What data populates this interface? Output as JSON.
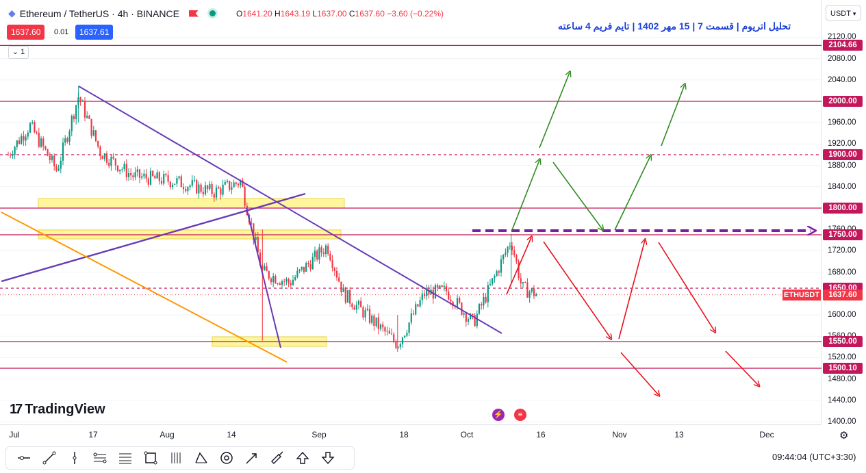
{
  "header": {
    "symbol_label": "Ethereum / TetherUS · 4h · BINANCE",
    "ohlc": {
      "o_label": "O",
      "o": "1641.20",
      "h_label": "H",
      "h": "1643.19",
      "l_label": "L",
      "l": "1637.00",
      "c_label": "C",
      "c": "1637.60",
      "change": "−3.60 (−0.22%)"
    },
    "sell_price": "1637.60",
    "spread": "0.01",
    "buy_price": "1637.61",
    "indicator_count": "1"
  },
  "title": "تحلیل اتریوم | قسمت 7 | 15 مهر 1402 | تایم فریم 4 ساعته",
  "currency_button": "USDT",
  "colors": {
    "up": "#089981",
    "down": "#f23645",
    "level": "#c2185b",
    "trend": "#673ab7",
    "orange": "#ff9800",
    "zone": "#fff59d",
    "dashed_target": "#7b1fa2",
    "bull_arrow": "#2e8b1f",
    "bear_arrow": "#e8101a",
    "title": "#1a3fd8"
  },
  "price_ticks": [
    "2120.00",
    "2080.00",
    "2040.00",
    "1960.00",
    "1920.00",
    "1880.00",
    "1840.00",
    "1760.00",
    "1720.00",
    "1680.00",
    "1600.00",
    "1560.00",
    "1520.00",
    "1480.00",
    "1440.00",
    "1400.00"
  ],
  "levels": [
    {
      "price": 2104.66,
      "label": "2104.66",
      "style": "solid"
    },
    {
      "price": 2000.0,
      "label": "2000.00",
      "style": "solid"
    },
    {
      "price": 1900.0,
      "label": "1900.00",
      "style": "dashed"
    },
    {
      "price": 1800.0,
      "label": "1800.00",
      "style": "solid"
    },
    {
      "price": 1750.0,
      "label": "1750.00",
      "style": "solid"
    },
    {
      "price": 1650.0,
      "label": "1650.00",
      "style": "dashed"
    },
    {
      "price": 1550.0,
      "label": "1550.00",
      "style": "solid"
    },
    {
      "price": 1500.1,
      "label": "1500.10",
      "style": "solid"
    }
  ],
  "current": {
    "symbol": "ETHUSDT",
    "price": 1637.6,
    "label": "1637.60"
  },
  "time_labels": [
    "Jul",
    "17",
    "Aug",
    "14",
    "Sep",
    "18",
    "Oct",
    "16",
    "Nov",
    "13",
    "Dec"
  ],
  "branding": "TradingView",
  "clock": "09:44:04",
  "timezone": "(UTC+3:30)",
  "toolbar_tools": [
    "horizontal-ray-tool",
    "trend-line-tool",
    "vertical-line-tool",
    "parallel-channel-tool",
    "fib-retracement-tool",
    "rectangle-tool",
    "pitchfork-tool",
    "abcd-pattern-tool",
    "target-tool",
    "arrow-tool",
    "brush-tool",
    "arrow-up-tool",
    "arrow-down-tool"
  ],
  "chart_data": {
    "type": "candlestick",
    "symbol": "ETHUSDT",
    "interval": "4h",
    "ylim": [
      1400,
      2130
    ],
    "x": [
      "Jul",
      "17",
      "Aug",
      "14",
      "Sep",
      "18",
      "Oct",
      "16",
      "Nov",
      "13",
      "Dec"
    ],
    "close_path": [
      {
        "date": "2023-07-01",
        "price": 1900
      },
      {
        "date": "2023-07-05",
        "price": 1955
      },
      {
        "date": "2023-07-10",
        "price": 1870
      },
      {
        "date": "2023-07-14",
        "price": 2010
      },
      {
        "date": "2023-07-18",
        "price": 1905
      },
      {
        "date": "2023-07-24",
        "price": 1860
      },
      {
        "date": "2023-08-01",
        "price": 1850
      },
      {
        "date": "2023-08-08",
        "price": 1830
      },
      {
        "date": "2023-08-13",
        "price": 1850
      },
      {
        "date": "2023-08-17",
        "price": 1680
      },
      {
        "date": "2023-08-22",
        "price": 1660
      },
      {
        "date": "2023-08-29",
        "price": 1730
      },
      {
        "date": "2023-09-01",
        "price": 1640
      },
      {
        "date": "2023-09-11",
        "price": 1545
      },
      {
        "date": "2023-09-16",
        "price": 1640
      },
      {
        "date": "2023-09-20",
        "price": 1645
      },
      {
        "date": "2023-09-25",
        "price": 1585
      },
      {
        "date": "2023-09-28",
        "price": 1650
      },
      {
        "date": "2023-10-02",
        "price": 1740
      },
      {
        "date": "2023-10-04",
        "price": 1650
      },
      {
        "date": "2023-10-07",
        "price": 1637.6
      }
    ],
    "high": 2029,
    "low": 1531,
    "levels": [
      2104.66,
      2000.0,
      1900.0,
      1800.0,
      1750.0,
      1650.0,
      1550.0,
      1500.1
    ]
  }
}
